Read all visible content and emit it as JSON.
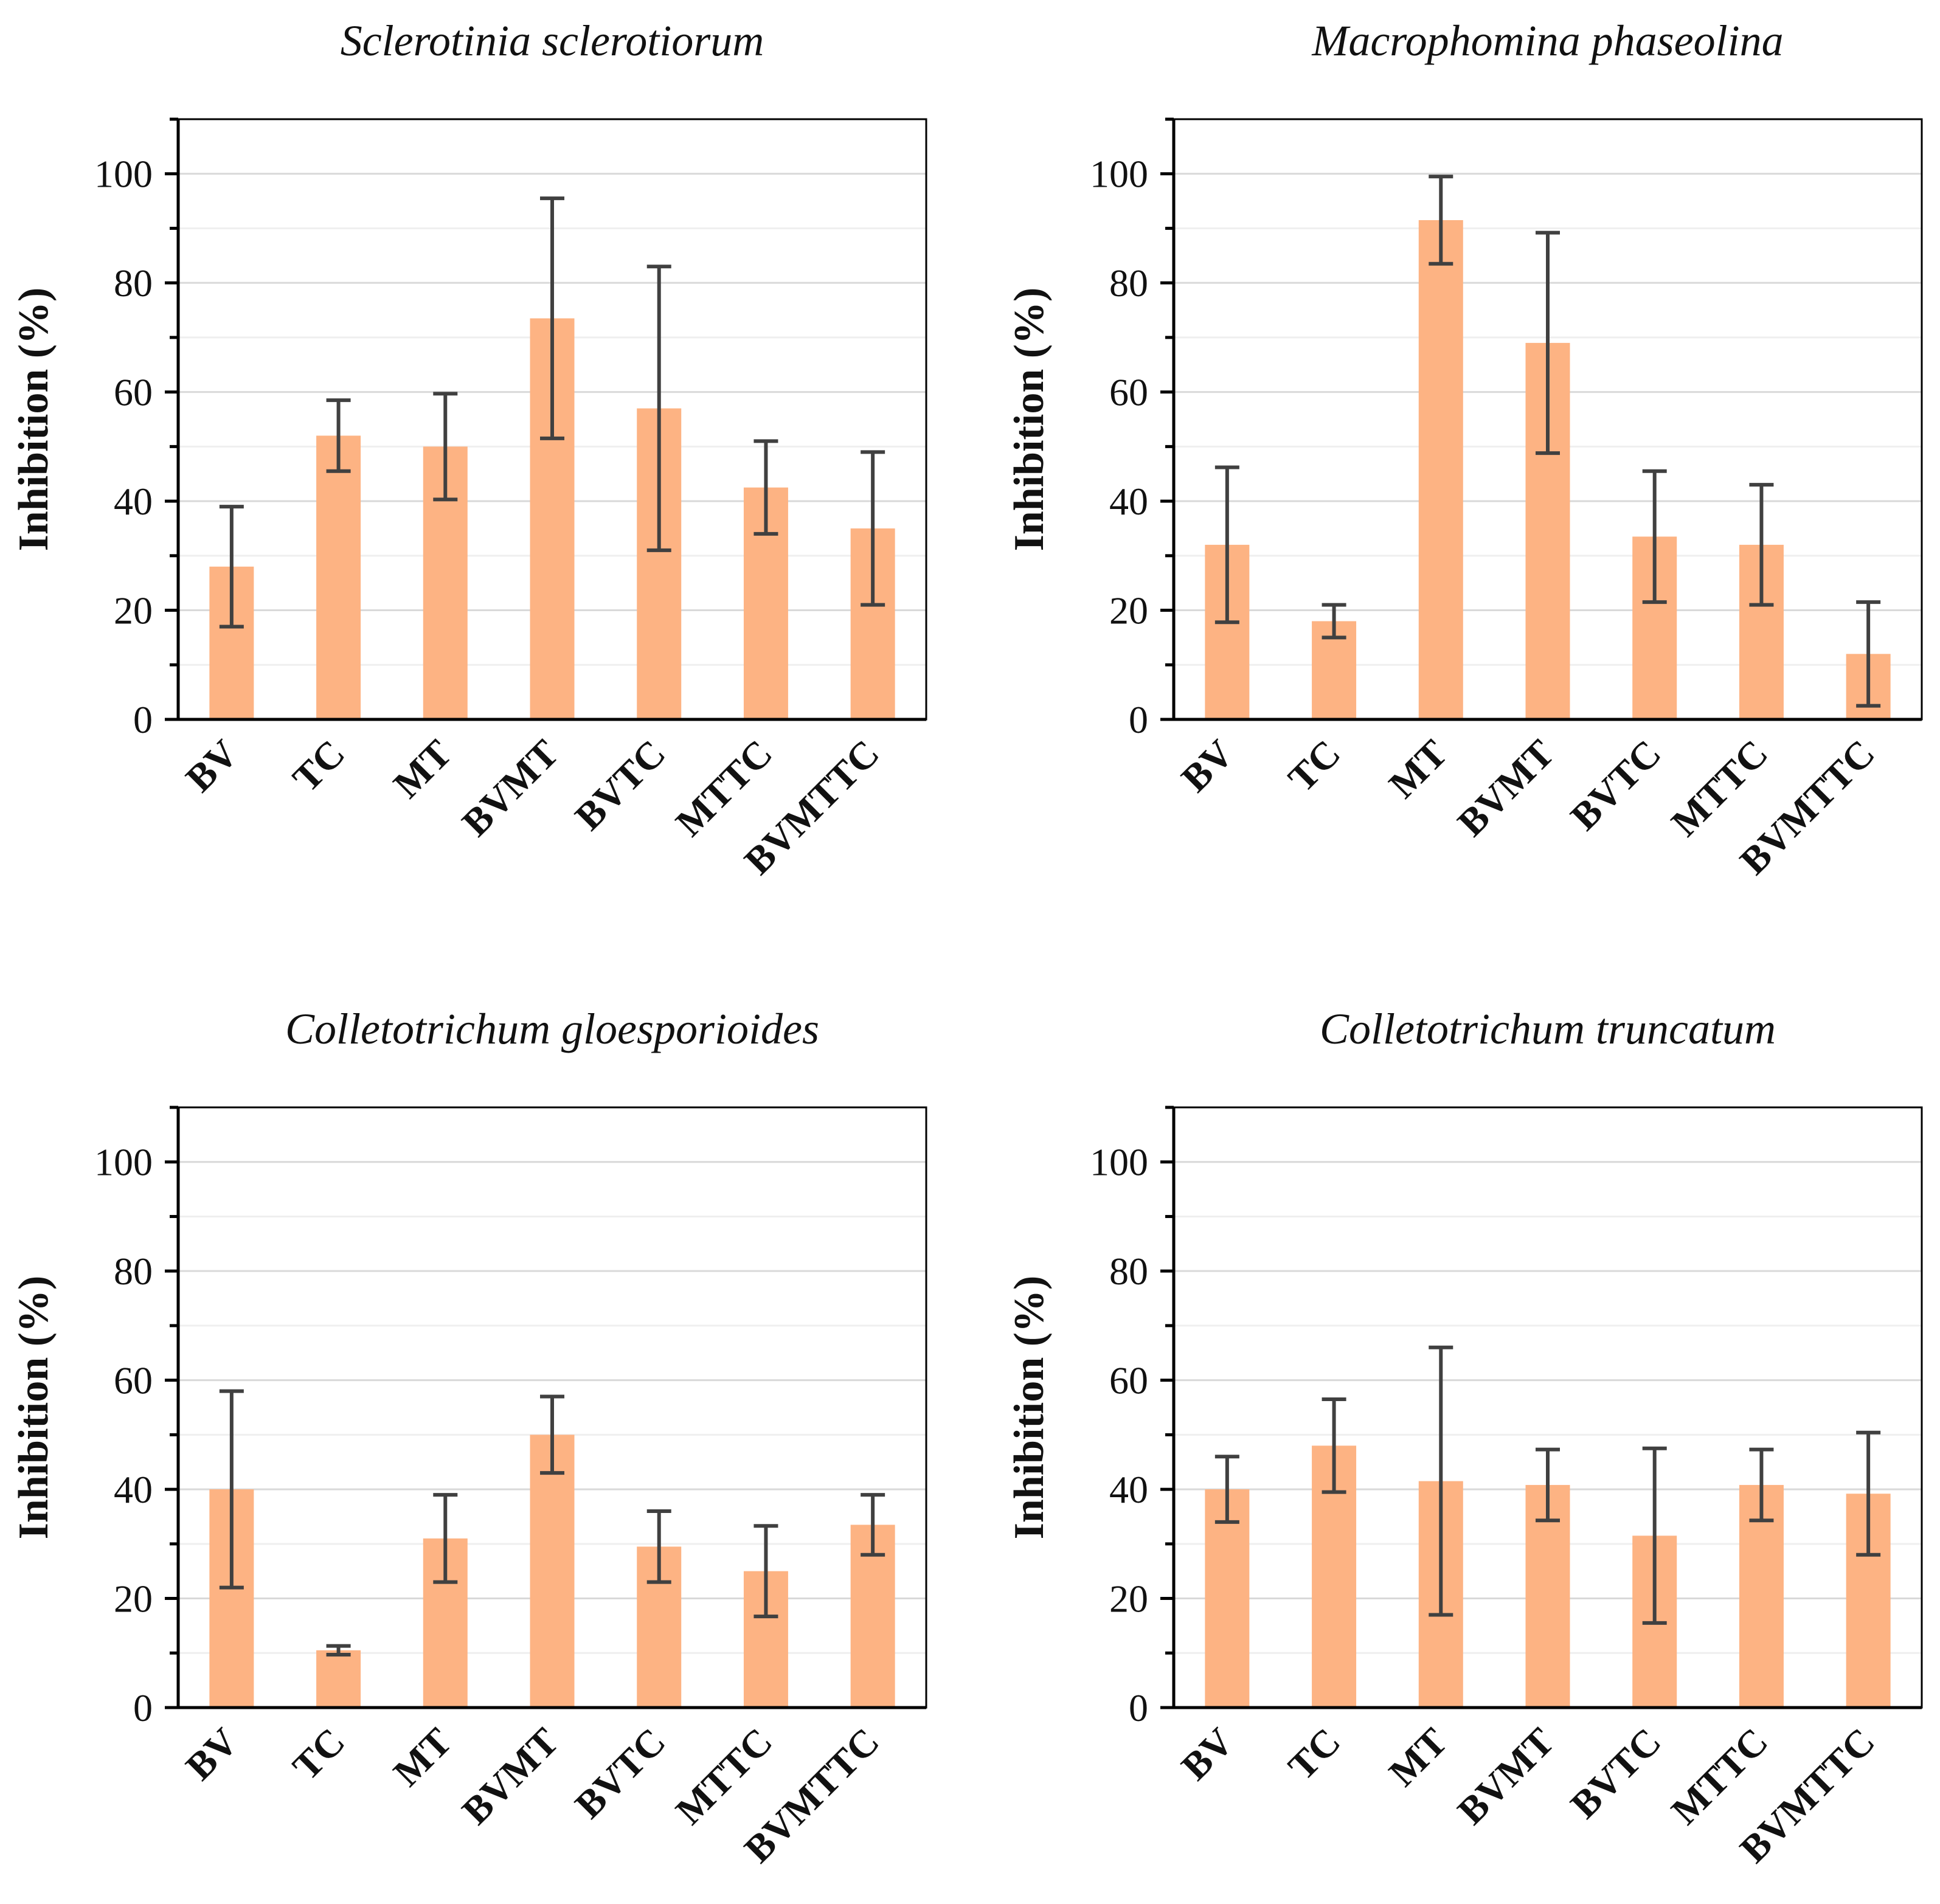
{
  "colors": {
    "bar": "#FDB383",
    "error_bar": "#404040",
    "grid": "#E6E6E6",
    "axis": "#000000"
  },
  "chart_data": [
    {
      "type": "bar",
      "title": "Sclerotinia sclerotiorum",
      "ylabel": "Inhibition (%)",
      "xlabel": "",
      "ylim": [
        0,
        110
      ],
      "yticks": [
        0,
        20,
        40,
        60,
        80,
        100
      ],
      "ytick_labels": [
        "0",
        "20",
        "40",
        "60",
        "80",
        "100"
      ],
      "categories": [
        "BV",
        "TC",
        "MT",
        "BVMT",
        "BVTC",
        "MTTC",
        "BVMTTC"
      ],
      "values": [
        28,
        52,
        50,
        73.5,
        57,
        42.5,
        35
      ],
      "errors": [
        11,
        6.5,
        9.7,
        22,
        26,
        8.5,
        14
      ],
      "grid": true
    },
    {
      "type": "bar",
      "title": "Macrophomina phaseolina",
      "ylabel": "Inhibition (%)",
      "xlabel": "",
      "ylim": [
        0,
        110
      ],
      "yticks": [
        0,
        20,
        40,
        60,
        80,
        100
      ],
      "ytick_labels": [
        "0",
        "20",
        "40",
        "60",
        "80",
        "100"
      ],
      "categories": [
        "BV",
        "TC",
        "MT",
        "BVMT",
        "BVTC",
        "MTTC",
        "BVMTTC"
      ],
      "values": [
        32,
        18,
        91.5,
        69,
        33.5,
        32,
        12
      ],
      "errors": [
        14.2,
        3,
        8,
        20.2,
        12,
        11,
        9.5
      ],
      "grid": true
    },
    {
      "type": "bar",
      "title": "Colletotrichum gloesporioides",
      "ylabel": "Inhibition (%)",
      "xlabel": "",
      "ylim": [
        0,
        110
      ],
      "yticks": [
        0,
        20,
        40,
        60,
        80,
        100
      ],
      "ytick_labels": [
        "0",
        "20",
        "40",
        "60",
        "80",
        "100"
      ],
      "categories": [
        "BV",
        "TC",
        "MT",
        "BVMT",
        "BVTC",
        "MTTC",
        "BVMTTC"
      ],
      "values": [
        40,
        10.5,
        31,
        50,
        29.5,
        25,
        33.5
      ],
      "errors": [
        18,
        0.8,
        8,
        7,
        6.5,
        8.3,
        5.5
      ],
      "grid": true
    },
    {
      "type": "bar",
      "title": "Colletotrichum truncatum",
      "ylabel": "Inhibition (%)",
      "xlabel": "",
      "ylim": [
        0,
        110
      ],
      "yticks": [
        0,
        20,
        40,
        60,
        80,
        100
      ],
      "ytick_labels": [
        "0",
        "20",
        "40",
        "60",
        "80",
        "100"
      ],
      "categories": [
        "BV",
        "TC",
        "MT",
        "BVMT",
        "BVTC",
        "MTTC",
        "BVMTTC"
      ],
      "values": [
        40,
        48,
        41.5,
        40.8,
        31.5,
        40.8,
        39.2
      ],
      "errors": [
        6,
        8.5,
        24.5,
        6.5,
        16,
        6.5,
        11.2
      ],
      "grid": true
    }
  ]
}
